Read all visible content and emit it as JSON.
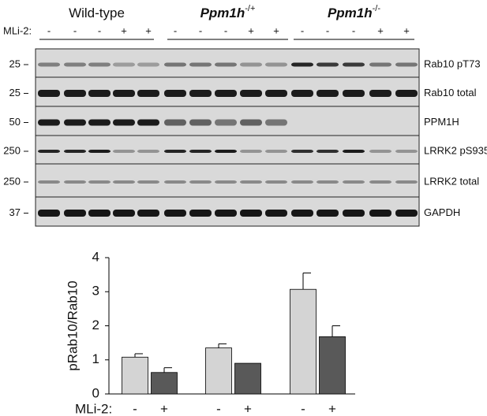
{
  "blot": {
    "groups": [
      {
        "name": "Wild-type"
      },
      {
        "name": "Ppm1h",
        "superscript": "-/+"
      },
      {
        "name": "Ppm1h",
        "superscript": "-/-"
      }
    ],
    "treatment_label": "MLi-2:",
    "treatments": [
      "-",
      "-",
      "-",
      "+",
      "+",
      "-",
      "-",
      "-",
      "+",
      "+",
      "-",
      "-",
      "-",
      "+",
      "+"
    ],
    "rows": [
      {
        "marker": "25",
        "label": "Rab10 pT73"
      },
      {
        "marker": "25",
        "label": "Rab10 total"
      },
      {
        "marker": "50",
        "label": "PPM1H"
      },
      {
        "marker": "250",
        "label": "LRRK2 pS935"
      },
      {
        "marker": "250",
        "label": "LRRK2 total"
      },
      {
        "marker": "37",
        "label": "GAPDH"
      }
    ]
  },
  "chart_data": {
    "type": "bar",
    "ylabel": "pRab10/Rab10",
    "xlabel": "MLi-2:",
    "categories": [
      "-",
      "+",
      "-",
      "+",
      "-",
      "+"
    ],
    "values": [
      1.08,
      0.63,
      1.35,
      0.9,
      3.07,
      1.68
    ],
    "errors": [
      0.1,
      0.14,
      0.12,
      null,
      0.48,
      0.32
    ],
    "colors": [
      "#d4d4d4",
      "#595959",
      "#d4d4d4",
      "#595959",
      "#d4d4d4",
      "#595959"
    ],
    "ylim": [
      0,
      4
    ],
    "yticks": [
      0,
      1,
      2,
      3,
      4
    ]
  }
}
